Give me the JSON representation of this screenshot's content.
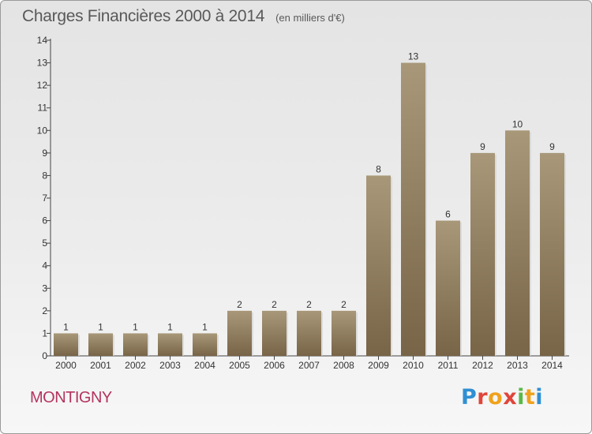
{
  "title": "Charges Financières 2000 à 2014",
  "unit": "(en milliers d'€)",
  "place": "MONTIGNY",
  "logo": {
    "letters": [
      "P",
      "r",
      "o",
      "x",
      "i",
      "t",
      "i"
    ],
    "colors": [
      "#2f8fd3",
      "#e0453a",
      "#f0a21c",
      "#e0453a",
      "#58b947",
      "#f0a21c",
      "#2f8fd3"
    ]
  },
  "colors": {
    "bar_top": "#a89879",
    "bar_bottom": "#786447",
    "axis": "#444444",
    "text": "#333333"
  },
  "chart_data": {
    "type": "bar",
    "categories": [
      "2000",
      "2001",
      "2002",
      "2003",
      "2004",
      "2005",
      "2006",
      "2007",
      "2008",
      "2009",
      "2010",
      "2011",
      "2012",
      "2013",
      "2014"
    ],
    "values": [
      1,
      1,
      1,
      1,
      1,
      2,
      2,
      2,
      2,
      8,
      13,
      6,
      9,
      10,
      9
    ],
    "ylim": [
      0,
      14
    ],
    "yticks": [
      0,
      1,
      2,
      3,
      4,
      5,
      6,
      7,
      8,
      9,
      10,
      11,
      12,
      13,
      14
    ],
    "grid": false,
    "data_labels": true
  }
}
